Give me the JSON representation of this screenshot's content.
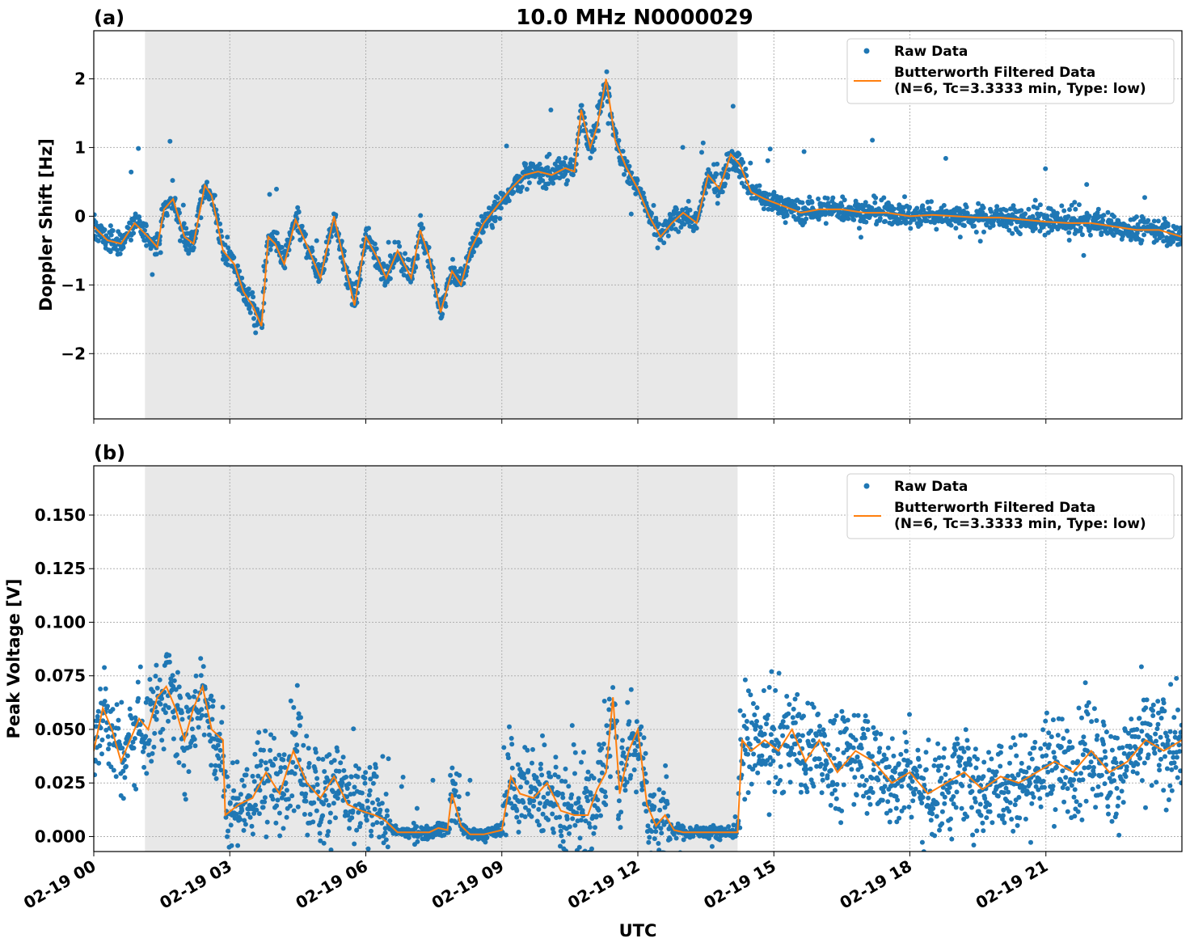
{
  "figure_title": "10.0 MHz N0000029",
  "xlabel": "UTC",
  "x_ticks": [
    "02-19 00",
    "02-19 03",
    "02-19 06",
    "02-19 09",
    "02-19 12",
    "02-19 15",
    "02-19 18",
    "02-19 21"
  ],
  "colors": {
    "raw": "#1f77b4",
    "filtered": "#ff7f0e",
    "shade": "#e8e8e8",
    "grid": "#b0b0b0"
  },
  "chart_data": [
    {
      "type": "scatter",
      "panel_label": "(a)",
      "ylabel": "Doppler Shift [Hz]",
      "xlim_hours_utc": [
        0,
        24
      ],
      "ylim": [
        -2.95,
        2.7
      ],
      "y_ticks": [
        2,
        1,
        0,
        -1,
        -2
      ],
      "y_tick_labels": [
        "2",
        "1",
        "0",
        "−1",
        "−2"
      ],
      "shaded_x_range_hours_utc": [
        1.13,
        14.2
      ],
      "grid": true,
      "legend_position": "top-right",
      "legend": {
        "raw": "Raw Data",
        "filtered_line1": "Butterworth Filtered Data",
        "filtered_line2": "(N=6, Tc=3.3333 min, Type: low)"
      },
      "series": [
        {
          "name": "Butterworth Filtered Data",
          "style": "line",
          "x": [
            0.0,
            0.3,
            0.6,
            0.9,
            1.2,
            1.4,
            1.55,
            1.75,
            2.0,
            2.2,
            2.45,
            2.6,
            2.85,
            3.1,
            3.3,
            3.5,
            3.7,
            3.85,
            4.0,
            4.2,
            4.45,
            4.75,
            5.0,
            5.3,
            5.5,
            5.75,
            6.0,
            6.25,
            6.45,
            6.7,
            7.0,
            7.2,
            7.4,
            7.65,
            7.9,
            8.1,
            8.3,
            8.6,
            8.9,
            9.2,
            9.5,
            9.8,
            10.1,
            10.4,
            10.6,
            10.75,
            10.95,
            11.1,
            11.3,
            11.5,
            11.75,
            12.0,
            12.25,
            12.5,
            12.75,
            13.0,
            13.3,
            13.55,
            13.8,
            14.05,
            14.25,
            14.5,
            14.8,
            15.2,
            15.6,
            16.0,
            16.5,
            17.0,
            17.5,
            18.0,
            18.5,
            19.0,
            19.5,
            20.0,
            20.5,
            21.0,
            21.5,
            22.0,
            22.5,
            23.0,
            23.5,
            24.0
          ],
          "y": [
            -0.15,
            -0.35,
            -0.4,
            -0.1,
            -0.3,
            -0.45,
            0.1,
            0.25,
            -0.3,
            -0.4,
            0.45,
            0.3,
            -0.5,
            -0.7,
            -1.1,
            -1.3,
            -1.6,
            -0.3,
            -0.4,
            -0.7,
            -0.05,
            -0.5,
            -0.9,
            0.0,
            -0.6,
            -1.3,
            -0.3,
            -0.6,
            -0.9,
            -0.5,
            -0.9,
            -0.2,
            -0.6,
            -1.4,
            -0.8,
            -1.0,
            -0.5,
            -0.1,
            0.15,
            0.4,
            0.6,
            0.65,
            0.6,
            0.7,
            0.65,
            1.55,
            1.0,
            1.3,
            2.0,
            1.1,
            0.7,
            0.4,
            0.0,
            -0.3,
            -0.1,
            0.05,
            -0.1,
            0.6,
            0.4,
            0.9,
            0.75,
            0.35,
            0.25,
            0.15,
            0.05,
            0.1,
            0.1,
            0.05,
            0.05,
            0.0,
            0.02,
            0.0,
            -0.02,
            -0.02,
            -0.05,
            -0.08,
            -0.1,
            -0.1,
            -0.15,
            -0.2,
            -0.2,
            -0.3
          ]
        }
      ]
    },
    {
      "type": "scatter",
      "panel_label": "(b)",
      "ylabel": "Peak Voltage [V]",
      "xlim_hours_utc": [
        0,
        24
      ],
      "ylim": [
        -0.007,
        0.173
      ],
      "y_ticks": [
        0.15,
        0.125,
        0.1,
        0.075,
        0.05,
        0.025,
        0.0
      ],
      "y_tick_labels": [
        "0.150",
        "0.125",
        "0.100",
        "0.075",
        "0.050",
        "0.025",
        "0.000"
      ],
      "shaded_x_range_hours_utc": [
        1.13,
        14.2
      ],
      "grid": true,
      "legend_position": "top-right",
      "legend": {
        "raw": "Raw Data",
        "filtered_line1": "Butterworth Filtered Data",
        "filtered_line2": "(N=6, Tc=3.3333 min, Type: low)"
      },
      "series": [
        {
          "name": "Butterworth Filtered Data",
          "style": "line",
          "x": [
            0.0,
            0.2,
            0.4,
            0.6,
            0.8,
            1.0,
            1.2,
            1.4,
            1.6,
            1.8,
            2.0,
            2.2,
            2.4,
            2.6,
            2.85,
            2.9,
            3.2,
            3.5,
            3.8,
            4.1,
            4.4,
            4.7,
            5.0,
            5.3,
            5.6,
            5.9,
            6.2,
            6.4,
            6.6,
            6.7,
            7.0,
            7.4,
            7.6,
            7.8,
            7.9,
            8.1,
            8.3,
            8.6,
            9.0,
            9.2,
            9.4,
            9.7,
            10.0,
            10.3,
            10.6,
            10.9,
            11.1,
            11.3,
            11.45,
            11.6,
            11.8,
            12.0,
            12.2,
            12.4,
            12.6,
            12.8,
            13.0,
            13.3,
            13.6,
            13.9,
            14.1,
            14.2,
            14.3,
            14.5,
            14.8,
            15.1,
            15.4,
            15.7,
            16.0,
            16.4,
            16.8,
            17.2,
            17.6,
            18.0,
            18.4,
            18.8,
            19.2,
            19.6,
            20.0,
            20.4,
            20.8,
            21.2,
            21.6,
            22.0,
            22.4,
            22.8,
            23.2,
            23.6,
            24.0
          ],
          "y": [
            0.04,
            0.06,
            0.05,
            0.035,
            0.045,
            0.055,
            0.05,
            0.065,
            0.07,
            0.06,
            0.045,
            0.06,
            0.07,
            0.05,
            0.045,
            0.01,
            0.015,
            0.018,
            0.03,
            0.02,
            0.04,
            0.025,
            0.018,
            0.028,
            0.015,
            0.012,
            0.01,
            0.008,
            0.004,
            0.002,
            0.002,
            0.002,
            0.004,
            0.003,
            0.02,
            0.005,
            0.001,
            0.001,
            0.003,
            0.028,
            0.02,
            0.018,
            0.025,
            0.012,
            0.01,
            0.01,
            0.022,
            0.03,
            0.065,
            0.02,
            0.04,
            0.05,
            0.015,
            0.005,
            0.01,
            0.003,
            0.002,
            0.002,
            0.002,
            0.002,
            0.002,
            0.002,
            0.045,
            0.04,
            0.045,
            0.04,
            0.05,
            0.035,
            0.045,
            0.03,
            0.04,
            0.035,
            0.025,
            0.03,
            0.02,
            0.025,
            0.03,
            0.022,
            0.028,
            0.025,
            0.03,
            0.035,
            0.03,
            0.04,
            0.03,
            0.035,
            0.045,
            0.04,
            0.045
          ]
        },
        {
          "name": "Raw Data",
          "style": "markers",
          "values_summary": "dense scatter around filtered curve"
        }
      ]
    }
  ]
}
